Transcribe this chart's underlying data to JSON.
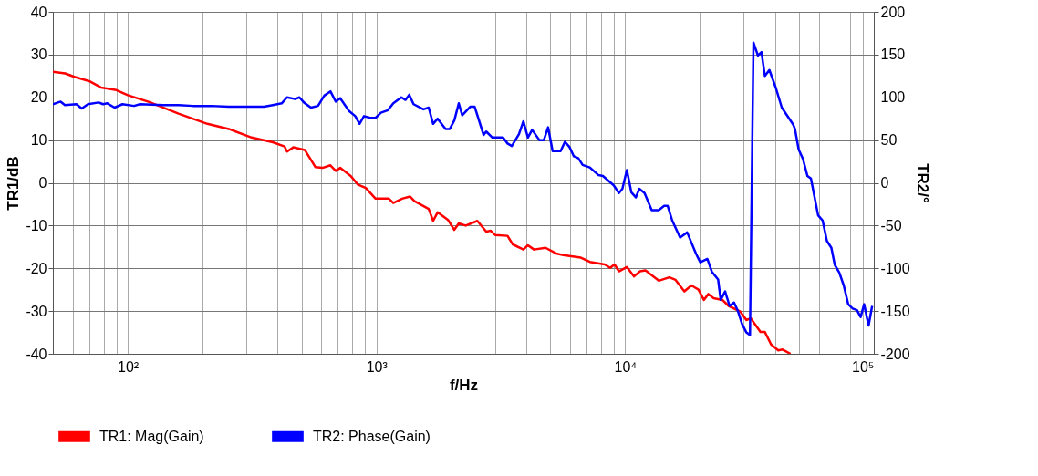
{
  "chart_data": {
    "type": "line",
    "xlabel": "f/Hz",
    "ylabel": "TR1/dB",
    "y2label": "TR2/°",
    "xlim": [
      50,
      100000
    ],
    "xticks": [
      {
        "value": 60,
        "label": null
      },
      {
        "value": 70,
        "label": null
      },
      {
        "value": 80,
        "label": null
      },
      {
        "value": 90,
        "label": null
      },
      {
        "value": 100,
        "label": "10²"
      },
      {
        "value": 200,
        "label": null
      },
      {
        "value": 300,
        "label": null
      },
      {
        "value": 400,
        "label": null
      },
      {
        "value": 500,
        "label": null
      },
      {
        "value": 600,
        "label": null
      },
      {
        "value": 700,
        "label": null
      },
      {
        "value": 800,
        "label": null
      },
      {
        "value": 900,
        "label": null
      },
      {
        "value": 1000,
        "label": "10³"
      },
      {
        "value": 2000,
        "label": null
      },
      {
        "value": 3000,
        "label": null
      },
      {
        "value": 4000,
        "label": null
      },
      {
        "value": 5000,
        "label": null
      },
      {
        "value": 6000,
        "label": null
      },
      {
        "value": 7000,
        "label": null
      },
      {
        "value": 8000,
        "label": null
      },
      {
        "value": 9000,
        "label": null
      },
      {
        "value": 10000,
        "label": "10⁴"
      },
      {
        "value": 20000,
        "label": null
      },
      {
        "value": 30000,
        "label": null
      },
      {
        "value": 40000,
        "label": null
      },
      {
        "value": 50000,
        "label": null
      },
      {
        "value": 60000,
        "label": null
      },
      {
        "value": 70000,
        "label": null
      },
      {
        "value": 80000,
        "label": null
      },
      {
        "value": 90000,
        "label": null
      },
      {
        "value": 100000,
        "label": "10⁵"
      }
    ],
    "ylim": [
      -40,
      40
    ],
    "yticks": [
      -40,
      -30,
      -20,
      -10,
      0,
      10,
      20,
      30,
      40
    ],
    "y2lim": [
      -200,
      200
    ],
    "y2ticks": [
      -200,
      -150,
      -100,
      -50,
      0,
      50,
      100,
      150,
      200
    ],
    "log": "x",
    "grid": true,
    "legend": "bottom",
    "marker": "none",
    "line_style": "solid",
    "series": [
      {
        "name": "TR1: Mag(Gain)",
        "color": "#ff0000",
        "x": [
          50,
          56,
          61,
          70,
          78,
          90,
          100,
          122,
          160,
          209,
          255,
          315,
          383,
          427,
          437,
          463,
          515,
          568,
          607,
          653,
          686,
          715,
          788,
          842,
          906,
          992,
          1008,
          1122,
          1169,
          1268,
          1365,
          1423,
          1622,
          1690,
          1762,
          1941,
          2056,
          2143,
          2286,
          2545,
          2763,
          2877,
          2999,
          3365,
          3532,
          3899,
          4064,
          4300,
          4786,
          5321,
          5636,
          6637,
          7211,
          8279,
          8710,
          9060,
          9441,
          10160,
          10860,
          11480,
          12070,
          13650,
          15060,
          15950,
          17300,
          18480,
          19720,
          20730,
          21610,
          22690,
          24620,
          26070,
          29020,
          30730,
          31990,
          35000,
          36480,
          38640,
          41280,
          42970,
          46240
        ],
        "values": [
          26.0,
          25.6,
          24.8,
          23.8,
          22.3,
          21.7,
          20.5,
          18.9,
          16.2,
          13.8,
          12.6,
          10.6,
          9.5,
          8.5,
          7.3,
          8.3,
          7.7,
          3.7,
          3.5,
          4.1,
          2.8,
          3.5,
          1.6,
          -0.4,
          -1.2,
          -3.7,
          -3.7,
          -3.7,
          -4.7,
          -3.7,
          -3.2,
          -4.3,
          -6.1,
          -8.9,
          -6.9,
          -8.7,
          -11.0,
          -9.5,
          -10.0,
          -8.9,
          -11.4,
          -11.2,
          -12.2,
          -12.4,
          -14.4,
          -15.6,
          -14.6,
          -15.6,
          -15.2,
          -16.6,
          -16.9,
          -17.5,
          -18.5,
          -19.1,
          -19.9,
          -19.1,
          -20.7,
          -19.7,
          -21.9,
          -20.7,
          -20.5,
          -22.9,
          -22.1,
          -22.7,
          -25.4,
          -24.0,
          -25.0,
          -27.4,
          -26.0,
          -27.0,
          -27.4,
          -28.8,
          -30.1,
          -32.1,
          -31.7,
          -34.9,
          -34.9,
          -37.8,
          -39.2,
          -39.0,
          -40.0
        ]
      },
      {
        "name": "TR2: Phase(Gain)",
        "color": "#0000ff",
        "axis": "y2",
        "x": [
          50,
          53.7,
          55.9,
          62.2,
          65.3,
          69.2,
          76.4,
          79.5,
          82.8,
          88.5,
          95.2,
          106,
          112,
          139,
          160,
          183,
          216,
          255,
          315,
          353,
          383,
          416,
          437,
          471,
          490,
          511,
          545,
          582,
          617,
          653,
          686,
          715,
          776,
          822,
          855,
          891,
          944,
          992,
          1042,
          1112,
          1169,
          1259,
          1309,
          1355,
          1410,
          1545,
          1622,
          1690,
          1762,
          1897,
          1972,
          2056,
          2143,
          2213,
          2382,
          2483,
          2697,
          2763,
          2924,
          3228,
          3365,
          3502,
          3741,
          3899,
          4064,
          4227,
          4519,
          4710,
          4900,
          5109,
          5500,
          5727,
          5970,
          6219,
          6477,
          6745,
          7211,
          7818,
          8142,
          8995,
          9441,
          9750,
          10160,
          10590,
          11040,
          11400,
          11970,
          12790,
          13650,
          14350,
          14830,
          15460,
          16630,
          17760,
          19280,
          20060,
          21410,
          22320,
          23650,
          24230,
          25240,
          26300,
          27400,
          28330,
          29510,
          30730,
          31770,
          32810,
          34200,
          35340,
          36480,
          38020,
          40270,
          42660,
          47430,
          48190,
          49870,
          51880,
          54080,
          55860,
          59700,
          62230,
          64770,
          67490,
          69660,
          72620,
          75690,
          78890,
          82220,
          85580,
          88510,
          91420,
          95280,
          98480
        ],
        "values": [
          92,
          95,
          91,
          92,
          87,
          92,
          94,
          92,
          93,
          88,
          92,
          90,
          92,
          91,
          91,
          90,
          90,
          89,
          89,
          89,
          91,
          93,
          100,
          98,
          100,
          94,
          88,
          90,
          102,
          107,
          95,
          99,
          84,
          78,
          69,
          78,
          76,
          76,
          82,
          85,
          93,
          100,
          97,
          103,
          92,
          86,
          88,
          69,
          75,
          63,
          63,
          73,
          93,
          79,
          89,
          89,
          56,
          60,
          53,
          53,
          46,
          43,
          57,
          72,
          53,
          62,
          50,
          50,
          65,
          37,
          37,
          48,
          42,
          31,
          29,
          21,
          18,
          9,
          8,
          -3,
          -12,
          -7,
          15,
          -11,
          -17,
          -7,
          -12,
          -32,
          -32,
          -27,
          -27,
          -44,
          -64,
          -58,
          -83,
          -93,
          -89,
          -104,
          -113,
          -137,
          -127,
          -144,
          -140,
          -149,
          -165,
          -175,
          -178,
          164,
          149,
          153,
          125,
          132,
          112,
          88,
          68,
          63,
          39,
          28,
          8,
          5,
          -38,
          -44,
          -68,
          -76,
          -96,
          -105,
          -120,
          -142,
          -147,
          -149,
          -157,
          -142,
          -167,
          -144
        ]
      }
    ]
  }
}
